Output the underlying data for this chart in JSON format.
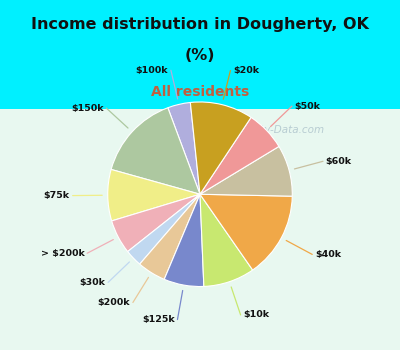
{
  "title_line1": "Income distribution in Dougherty, OK",
  "title_line2": "(%)",
  "subtitle": "All residents",
  "slices": [
    {
      "label": "$100k",
      "value": 4,
      "color": "#b0aedd"
    },
    {
      "label": "$150k",
      "value": 15,
      "color": "#adc8a0"
    },
    {
      "label": "$75k",
      "value": 9,
      "color": "#f0ee88"
    },
    {
      "label": "> $200k",
      "value": 6,
      "color": "#f0b0b8"
    },
    {
      "label": "$30k",
      "value": 3,
      "color": "#c0d8f0"
    },
    {
      "label": "$200k",
      "value": 5,
      "color": "#e8c898"
    },
    {
      "label": "$125k",
      "value": 7,
      "color": "#7888cc"
    },
    {
      "label": "$10k",
      "value": 9,
      "color": "#c8e870"
    },
    {
      "label": "$40k",
      "value": 15,
      "color": "#f0a848"
    },
    {
      "label": "$60k",
      "value": 9,
      "color": "#c8c0a0"
    },
    {
      "label": "$50k",
      "value": 7,
      "color": "#f09898"
    },
    {
      "label": "$20k",
      "value": 11,
      "color": "#c8a020"
    }
  ],
  "top_bg": "#00f0ff",
  "chart_bg_outer": "#d0f0e0",
  "title_color": "#111111",
  "subtitle_color": "#c06040",
  "label_color": "#111111",
  "watermark_color": "#a0bcc8",
  "startangle": 96
}
